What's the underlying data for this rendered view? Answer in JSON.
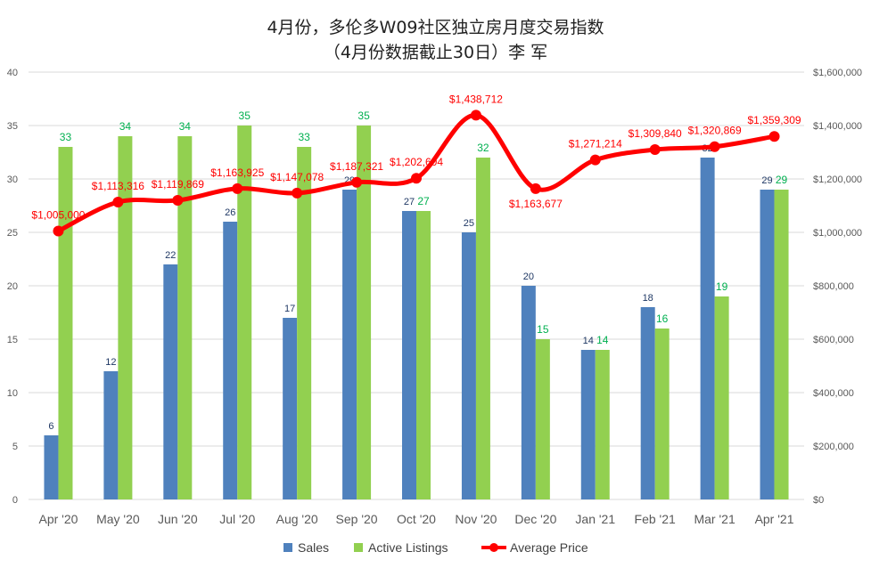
{
  "title": {
    "line1": "4月份，多伦多W09社区独立房月度交易指数",
    "line2": "（4月份数据截止30日）李 军"
  },
  "colors": {
    "sales": "#4f81bd",
    "listings": "#92d050",
    "avg_price": "#ff0000",
    "sales_label": "#1f3864",
    "listings_label": "#00b050",
    "price_label": "#ff0000",
    "grid": "#d9d9d9",
    "axis_text": "#595959"
  },
  "chart_data": {
    "type": "bar",
    "categories": [
      "Apr '20",
      "May '20",
      "Jun '20",
      "Jul '20",
      "Aug '20",
      "Sep '20",
      "Oct '20",
      "Nov '20",
      "Dec '20",
      "Jan '21",
      "Feb '21",
      "Mar '21",
      "Apr '21"
    ],
    "series": [
      {
        "name": "Sales",
        "type": "bar",
        "axis": "left",
        "values": [
          6,
          12,
          22,
          26,
          17,
          29,
          27,
          25,
          20,
          14,
          18,
          32,
          29
        ]
      },
      {
        "name": "Active Listings",
        "type": "bar",
        "axis": "left",
        "values": [
          33,
          34,
          34,
          35,
          33,
          35,
          27,
          32,
          15,
          14,
          16,
          19,
          29
        ]
      },
      {
        "name": "Average Price",
        "type": "line",
        "axis": "right",
        "values": [
          1005000,
          1113316,
          1119869,
          1163925,
          1147078,
          1187321,
          1202604,
          1438712,
          1163677,
          1271214,
          1309840,
          1320869,
          1359309
        ]
      }
    ],
    "price_labels": [
      "$1,005,000",
      "$1,113,316",
      "$1,119,869",
      "$1,163,925",
      "$1,147,078",
      "$1,187,321",
      "$1,202,604",
      "$1,438,712",
      "$1,163,677",
      "$1,271,214",
      "$1,309,840",
      "$1,320,869",
      "$1,359,309"
    ],
    "y_left": {
      "min": 0,
      "max": 40,
      "ticks": [
        "0",
        "5",
        "10",
        "15",
        "20",
        "25",
        "30",
        "35",
        "40"
      ]
    },
    "y_right": {
      "min": 0,
      "max": 1600000,
      "ticks": [
        "$0",
        "$200,000",
        "$400,000",
        "$600,000",
        "$800,000",
        "$1,000,000",
        "$1,200,000",
        "$1,400,000",
        "$1,600,000"
      ]
    },
    "grid": true,
    "legend_position": "bottom"
  }
}
